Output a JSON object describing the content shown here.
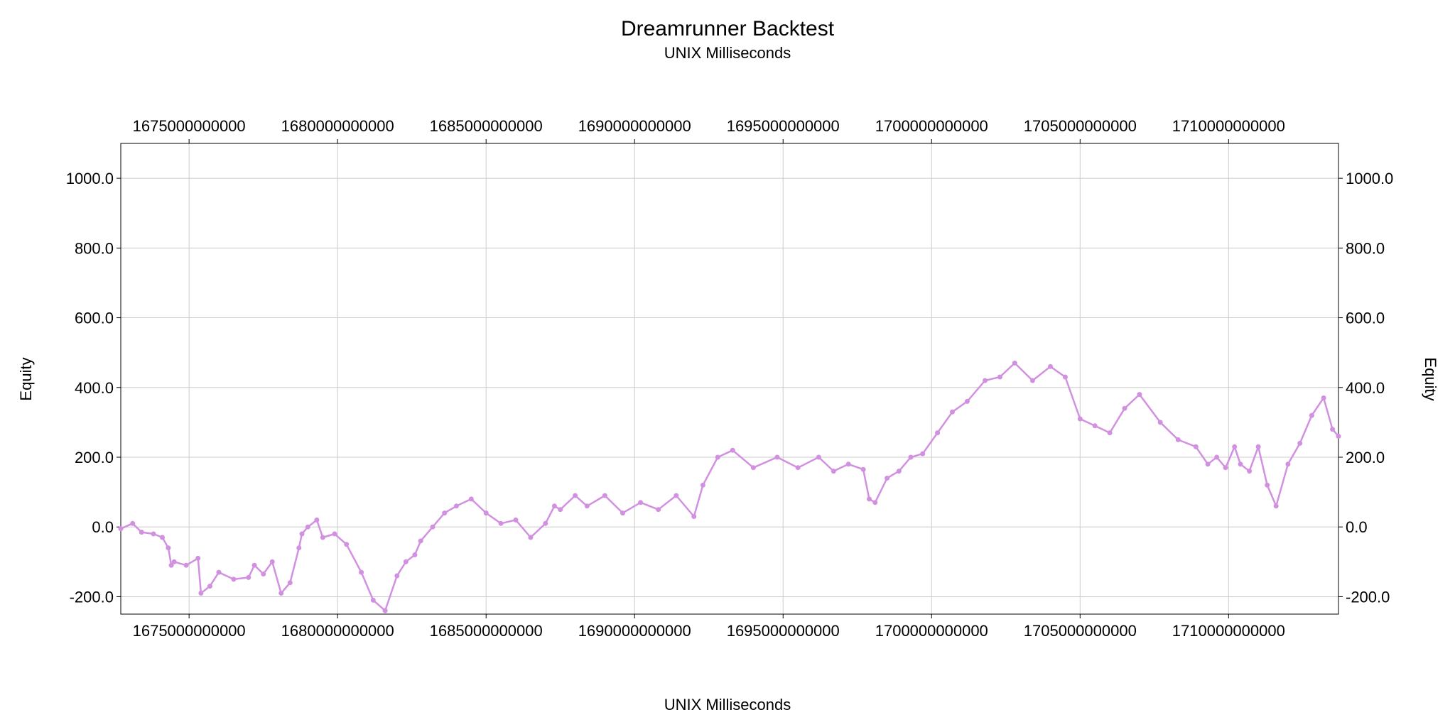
{
  "chart_data": {
    "type": "line",
    "title": "Dreamrunner Backtest",
    "subtitle": "UNIX Milliseconds",
    "xlabel": "UNIX Milliseconds",
    "ylabel": "Equity",
    "ylabel_right": "Equity",
    "xlim": [
      1672700000000,
      1713700000000
    ],
    "ylim": [
      -250,
      1100
    ],
    "x_ticks": [
      1675000000000,
      1680000000000,
      1685000000000,
      1690000000000,
      1695000000000,
      1700000000000,
      1705000000000,
      1710000000000
    ],
    "x_tick_labels": [
      "1675000000000",
      "1680000000000",
      "1685000000000",
      "1690000000000",
      "1695000000000",
      "1700000000000",
      "1705000000000",
      "1710000000000"
    ],
    "y_ticks": [
      -200,
      0,
      200,
      400,
      600,
      800,
      1000
    ],
    "y_tick_labels": [
      "-200.0",
      "0.0",
      "200.0",
      "400.0",
      "600.0",
      "800.0",
      "1000.0"
    ],
    "grid": true,
    "legend": "none",
    "series_color": "#d291e0",
    "series": [
      {
        "x": [
          1672700000000,
          1673100000000,
          1673400000000,
          1673800000000,
          1674100000000,
          1674300000000,
          1674400000000,
          1674500000000,
          1674900000000,
          1675300000000,
          1675400000000,
          1675700000000,
          1676000000000,
          1676500000000,
          1677000000000,
          1677200000000,
          1677500000000,
          1677800000000,
          1678100000000,
          1678400000000,
          1678700000000,
          1678800000000,
          1679000000000,
          1679300000000,
          1679500000000,
          1679900000000,
          1680300000000,
          1680800000000,
          1681200000000,
          1681600000000,
          1682000000000,
          1682300000000,
          1682600000000,
          1682800000000,
          1683200000000,
          1683600000000,
          1684000000000,
          1684500000000,
          1685000000000,
          1685500000000,
          1686000000000,
          1686500000000,
          1687000000000,
          1687300000000,
          1687500000000,
          1688000000000,
          1688400000000,
          1689000000000,
          1689600000000,
          1690200000000,
          1690800000000,
          1691400000000,
          1692000000000,
          1692300000000,
          1692800000000,
          1693300000000,
          1694000000000,
          1694800000000,
          1695500000000,
          1696200000000,
          1696700000000,
          1697200000000,
          1697700000000,
          1697900000000,
          1698100000000,
          1698500000000,
          1698900000000,
          1699300000000,
          1699700000000,
          1700200000000,
          1700700000000,
          1701200000000,
          1701800000000,
          1702300000000,
          1702800000000,
          1703400000000,
          1704000000000,
          1704500000000,
          1705000000000,
          1705500000000,
          1706000000000,
          1706500000000,
          1707000000000,
          1707700000000,
          1708300000000,
          1708900000000,
          1709300000000,
          1709600000000,
          1709900000000,
          1710200000000,
          1710400000000,
          1710700000000,
          1711000000000,
          1711300000000,
          1711600000000,
          1712000000000,
          1712400000000,
          1712800000000,
          1713200000000,
          1713500000000,
          1713700000000
        ],
        "y": [
          -5,
          10,
          -15,
          -20,
          -30,
          -60,
          -110,
          -100,
          -110,
          -90,
          -190,
          -170,
          -130,
          -150,
          -145,
          -110,
          -135,
          -100,
          -190,
          -160,
          -60,
          -20,
          0,
          20,
          -30,
          -20,
          -50,
          -130,
          -210,
          -240,
          -140,
          -100,
          -80,
          -40,
          0,
          40,
          60,
          80,
          40,
          10,
          20,
          -30,
          10,
          60,
          50,
          90,
          60,
          90,
          40,
          70,
          50,
          90,
          30,
          120,
          200,
          220,
          170,
          200,
          170,
          200,
          160,
          180,
          165,
          80,
          70,
          140,
          160,
          200,
          210,
          270,
          330,
          360,
          420,
          430,
          470,
          420,
          460,
          430,
          310,
          290,
          270,
          340,
          380,
          300,
          250,
          230,
          180,
          200,
          170,
          230,
          180,
          160,
          230,
          120,
          60,
          180,
          240,
          320,
          370,
          280,
          260
        ]
      }
    ]
  }
}
